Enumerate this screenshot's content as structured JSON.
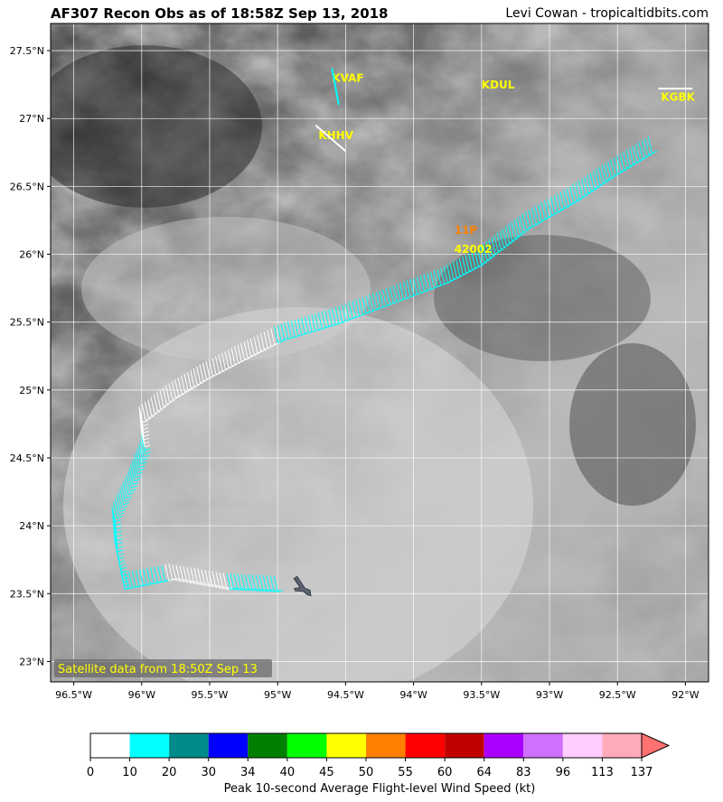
{
  "header": {
    "title": "AF307 Recon Obs as of 18:58Z Sep 13, 2018",
    "credit": "Levi Cowan - tropicaltidbits.com"
  },
  "map": {
    "lon_range": [
      -96.67,
      -91.83
    ],
    "lat_range": [
      22.85,
      27.7
    ],
    "lat_ticks": [
      {
        "value": 27.5,
        "label": "27.5°N"
      },
      {
        "value": 27.0,
        "label": "27°N"
      },
      {
        "value": 26.5,
        "label": "26.5°N"
      },
      {
        "value": 26.0,
        "label": "26°N"
      },
      {
        "value": 25.5,
        "label": "25.5°N"
      },
      {
        "value": 25.0,
        "label": "25°N"
      },
      {
        "value": 24.5,
        "label": "24.5°N"
      },
      {
        "value": 24.0,
        "label": "24°N"
      },
      {
        "value": 23.5,
        "label": "23.5°N"
      },
      {
        "value": 23.0,
        "label": "23°N"
      }
    ],
    "lon_ticks": [
      {
        "value": -96.5,
        "label": "96.5°W"
      },
      {
        "value": -96.0,
        "label": "96°W"
      },
      {
        "value": -95.5,
        "label": "95.5°W"
      },
      {
        "value": -95.0,
        "label": "95°W"
      },
      {
        "value": -94.5,
        "label": "94.5°W"
      },
      {
        "value": -94.0,
        "label": "94°W"
      },
      {
        "value": -93.5,
        "label": "93.5°W"
      },
      {
        "value": -93.0,
        "label": "93°W"
      },
      {
        "value": -92.5,
        "label": "92.5°W"
      },
      {
        "value": -92.0,
        "label": "92°W"
      }
    ],
    "satellite_note": "Satellite data from 18:50Z Sep 13",
    "stations": [
      {
        "id": "KVAF",
        "lon": -94.6,
        "lat": 27.27,
        "color": "#ffff00"
      },
      {
        "id": "KHHV",
        "lon": -94.7,
        "lat": 26.85,
        "color": "#ffff00"
      },
      {
        "id": "KDUL",
        "lon": -93.5,
        "lat": 27.22,
        "color": "#ffff00"
      },
      {
        "id": "KGBK",
        "lon": -92.18,
        "lat": 27.13,
        "color": "#ffff00"
      },
      {
        "id": "11P",
        "lon": -93.7,
        "lat": 26.15,
        "color": "#ff8000"
      },
      {
        "id": "42002",
        "lon": -93.7,
        "lat": 26.01,
        "color": "#ffff00"
      }
    ],
    "flight_track": [
      [
        -96.15,
        23.65
      ],
      [
        -96.2,
        23.9
      ],
      [
        -96.22,
        24.15
      ],
      [
        -96.1,
        24.4
      ],
      [
        -96.0,
        24.65
      ],
      [
        -96.02,
        24.88
      ],
      [
        -95.8,
        25.05
      ],
      [
        -95.55,
        25.2
      ],
      [
        -95.2,
        25.38
      ],
      [
        -95.0,
        25.48
      ],
      [
        -94.6,
        25.6
      ],
      [
        -94.2,
        25.75
      ],
      [
        -93.8,
        25.9
      ],
      [
        -93.55,
        26.03
      ],
      [
        -93.2,
        26.3
      ],
      [
        -92.85,
        26.5
      ],
      [
        -92.55,
        26.7
      ],
      [
        -92.25,
        26.88
      ]
    ],
    "track_end_segment": [
      [
        -96.15,
        23.65
      ],
      [
        -95.8,
        23.72
      ],
      [
        -95.4,
        23.65
      ],
      [
        -95.0,
        23.63
      ]
    ],
    "aircraft_icon": "recon-aircraft-icon",
    "aircraft_position": {
      "lon": -94.8,
      "lat": 23.53
    }
  },
  "colorbar": {
    "label": "Peak 10-second Average Flight-level Wind Speed (kt)",
    "ticks": [
      "0",
      "10",
      "20",
      "30",
      "34",
      "40",
      "45",
      "50",
      "55",
      "60",
      "64",
      "83",
      "96",
      "113",
      "137"
    ],
    "colors": [
      "#ffffff",
      "#00ffff",
      "#008b8b",
      "#0000ff",
      "#008000",
      "#00ff00",
      "#ffff00",
      "#ff8000",
      "#ff0000",
      "#c00000",
      "#aa00ff",
      "#d070ff",
      "#ffccff",
      "#ffaabb"
    ],
    "extend_color": "#ff7070"
  }
}
